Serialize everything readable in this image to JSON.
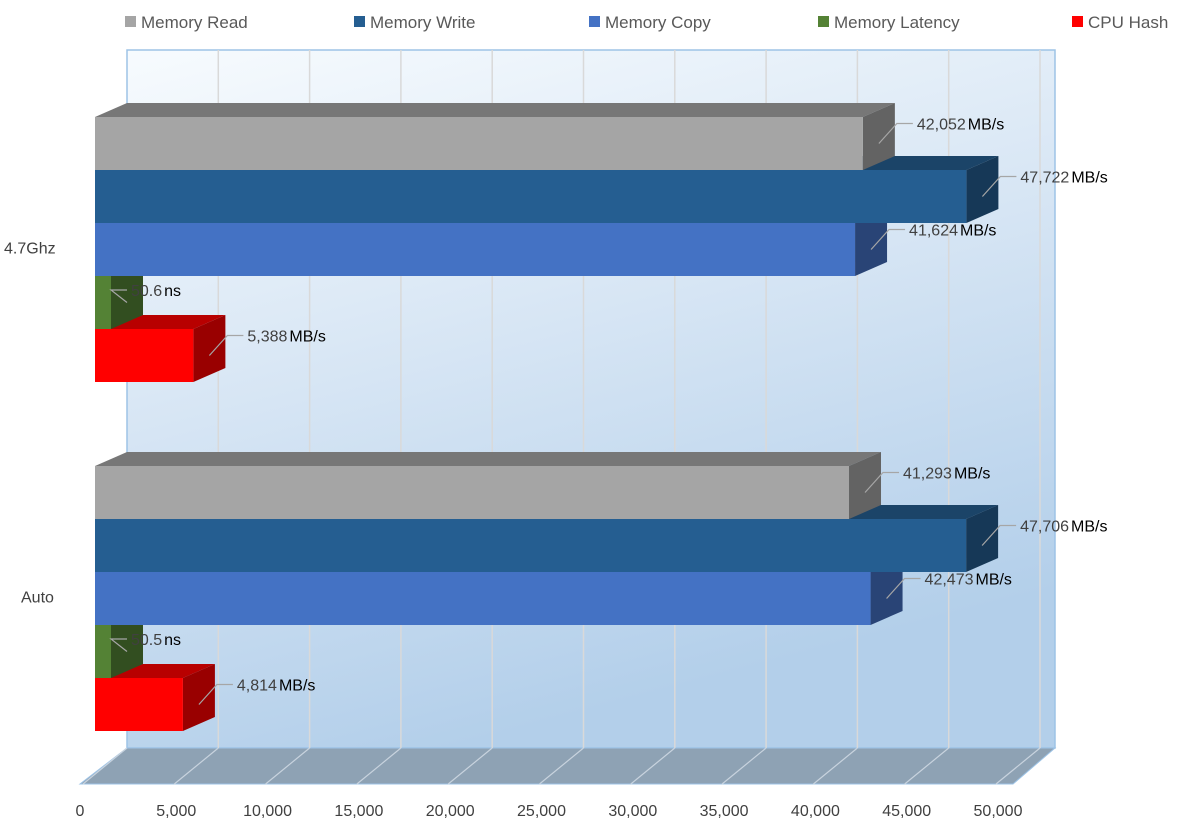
{
  "chart_data": {
    "type": "bar",
    "orientation": "horizontal",
    "style": "3d-clustered",
    "categories": [
      "4.7Ghz",
      "Auto"
    ],
    "series": [
      {
        "name": "Memory Read",
        "color": "#a5a5a5",
        "values": [
          42052,
          41293
        ],
        "labels": [
          "42,052",
          "41,293"
        ],
        "unit": "MB/s"
      },
      {
        "name": "Memory Write",
        "color": "#255e91",
        "values": [
          47722,
          47706
        ],
        "labels": [
          "47,722",
          "47,706"
        ],
        "unit": "MB/s"
      },
      {
        "name": "Memory Copy",
        "color": "#4472c4",
        "values": [
          41624,
          42473
        ],
        "labels": [
          "41,624",
          "42,473"
        ],
        "unit": "MB/s"
      },
      {
        "name": "Memory Latency",
        "color": "#548235",
        "values": [
          50.6,
          50.5
        ],
        "labels": [
          "50.6",
          "50.5"
        ],
        "unit": "ns"
      },
      {
        "name": "CPU Hash",
        "color": "#ff0000",
        "values": [
          5388,
          4814
        ],
        "labels": [
          "5,388",
          "4,814"
        ],
        "unit": "MB/s"
      }
    ],
    "xlim": [
      0,
      50000
    ],
    "xticks": [
      "0",
      "5,000",
      "10,000",
      "15,000",
      "20,000",
      "25,000",
      "30,000",
      "35,000",
      "40,000",
      "45,000",
      "50,000"
    ],
    "legend_position": "top",
    "grid": true
  }
}
